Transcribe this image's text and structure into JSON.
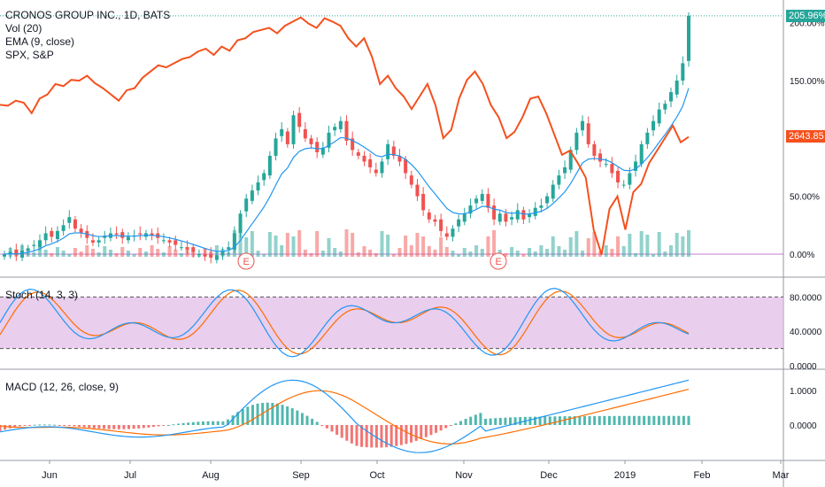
{
  "header": {
    "symbol_line": "CRONOS GROUP INC., 1D, BATS",
    "indicators": [
      "Vol (20)",
      "EMA (9, close)",
      "SPX, S&P"
    ]
  },
  "panes": {
    "stoch_label": "Stoch (14, 3, 3)",
    "macd_label": "MACD (12, 26, close, 9)"
  },
  "badges": {
    "last_pct": "205.96%",
    "spx_value": "2643.85"
  },
  "colors": {
    "up": "#26a69a",
    "down": "#ef5350",
    "spx": "#f4511e",
    "ema": "#2196f3",
    "stoch_k": "#2196f3",
    "stoch_d": "#ff6d00",
    "stoch_band": "#e1bee7",
    "macd_line": "#2196f3",
    "signal_line": "#ff6d00"
  },
  "chart_data": {
    "type": "candlestick",
    "price_axis_ticks": [
      "200.00%",
      "150.00%",
      "50.00%",
      "0.00%"
    ],
    "stoch_axis_ticks": [
      "80.0000",
      "40.0000",
      "0.0000"
    ],
    "macd_axis_ticks": [
      "1.0000",
      "0.0000"
    ],
    "time_ticks": [
      "Jun",
      "Jul",
      "Aug",
      "Sep",
      "Oct",
      "Nov",
      "Dec",
      "2019",
      "Feb",
      "Mar"
    ],
    "earnings_markers": [
      "E",
      "E"
    ],
    "price_pct_path": [
      0,
      2,
      -1,
      3,
      5,
      8,
      12,
      18,
      15,
      20,
      25,
      32,
      22,
      18,
      14,
      10,
      12,
      16,
      18,
      17,
      14,
      15,
      16,
      17,
      18,
      16,
      14,
      12,
      10,
      8,
      6,
      4,
      2,
      0,
      -2,
      -3,
      -1,
      2,
      6,
      18,
      35,
      48,
      55,
      62,
      70,
      85,
      100,
      108,
      95,
      120,
      110,
      100,
      95,
      88,
      92,
      105,
      110,
      115,
      98,
      90,
      85,
      80,
      75,
      70,
      80,
      95,
      85,
      80,
      70,
      60,
      50,
      38,
      30,
      28,
      20,
      15,
      22,
      30,
      35,
      42,
      48,
      52,
      40,
      30,
      35,
      28,
      32,
      38,
      30,
      35,
      40,
      42,
      50,
      60,
      68,
      75,
      90,
      105,
      115,
      95,
      85,
      80,
      78,
      70,
      62,
      60,
      70,
      80,
      95,
      105,
      115,
      125,
      130,
      140,
      150,
      165,
      206
    ],
    "spx_path": [
      2720,
      2718,
      2730,
      2725,
      2700,
      2735,
      2745,
      2770,
      2765,
      2780,
      2778,
      2790,
      2772,
      2760,
      2745,
      2730,
      2755,
      2760,
      2785,
      2800,
      2815,
      2810,
      2820,
      2830,
      2835,
      2848,
      2855,
      2840,
      2860,
      2850,
      2875,
      2880,
      2895,
      2900,
      2905,
      2892,
      2910,
      2920,
      2930,
      2915,
      2905,
      2928,
      2920,
      2910,
      2880,
      2860,
      2880,
      2835,
      2770,
      2790,
      2760,
      2740,
      2710,
      2740,
      2770,
      2720,
      2640,
      2660,
      2735,
      2780,
      2800,
      2770,
      2720,
      2690,
      2640,
      2655,
      2690,
      2735,
      2740,
      2700,
      2650,
      2600,
      2610,
      2580,
      2545,
      2420,
      2360,
      2470,
      2500,
      2420,
      2510,
      2530,
      2580,
      2610,
      2640,
      2670,
      2630,
      2643
    ]
  }
}
